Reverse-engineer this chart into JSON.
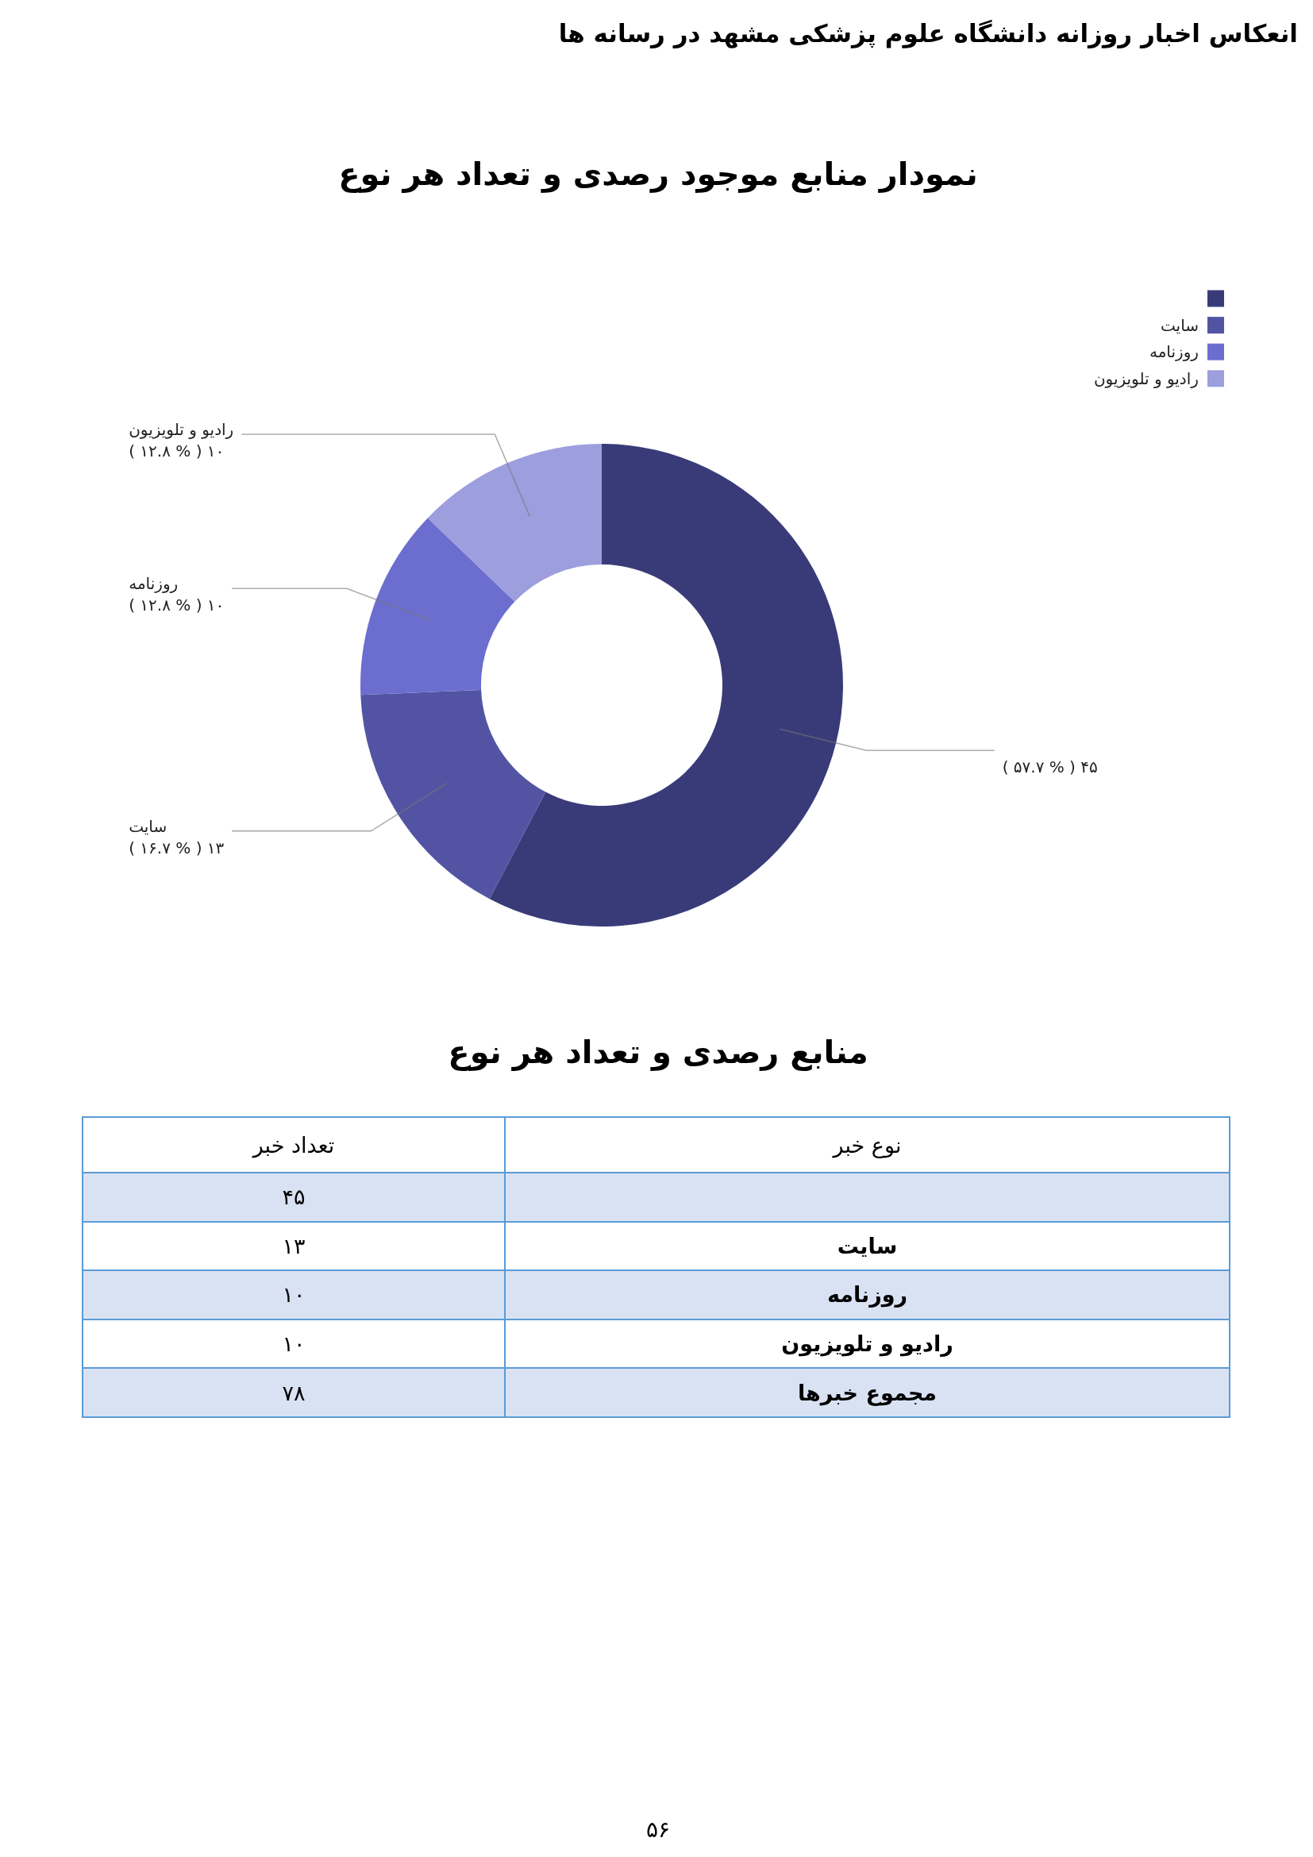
{
  "chart_data": [
    {
      "type": "donut",
      "title": "نمودار منابع موجود رصدی و تعداد هر نوع",
      "categories": [
        null,
        "سایت",
        "روزنامه",
        "رادیو و تلویزیون"
      ],
      "values": [
        45,
        13,
        10,
        10
      ],
      "colors": [
        "#393b79",
        "#5254a3",
        "#6b6ecf",
        "#9c9ede"
      ],
      "value_labels": [
        "۴۵ ( % ۵۷.۷ )",
        "۱۳ ( % ۱۶.۷ )",
        "۱۰ ( % ۱۲.۸ )",
        "۱۰ ( % ۱۲.۸ )"
      ],
      "legend": "top right",
      "annotations": [
        "انعکاس اخبار روزانه دانشگاه علوم پزشکی مشهد در رسانه ها"
      ]
    },
    {
      "type": "other",
      "title": "منابع رصدی و تعداد هر نوع",
      "xlabel": "نوع خبر",
      "ylabel": "تعداد خبر",
      "categories": [
        null,
        "سایت",
        "روزنامه",
        "رادیو و تلویزیون",
        "مجموع خبرها"
      ],
      "values": [
        45,
        13,
        10,
        10,
        78
      ],
      "value_labels": [
        "۴۵",
        "۱۳",
        "۱۰",
        "۱۰",
        "۷۸"
      ],
      "annotations": [
        "۵۶"
      ]
    }
  ]
}
